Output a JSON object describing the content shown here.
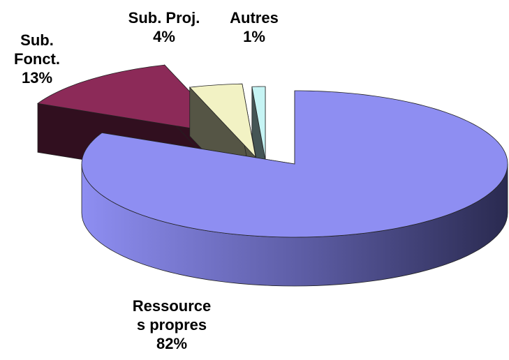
{
  "chart_data": {
    "type": "pie3d",
    "categories": [
      "Ressources propres",
      "Sub. Fonct.",
      "Sub. Proj.",
      "Autres"
    ],
    "values": [
      82,
      13,
      4,
      1
    ],
    "value_labels": [
      "82%",
      "13%",
      "4%",
      "1%"
    ],
    "colors": [
      "#8e8ef2",
      "#8c2a58",
      "#f2f2c4",
      "#c6f4f4"
    ]
  }
}
